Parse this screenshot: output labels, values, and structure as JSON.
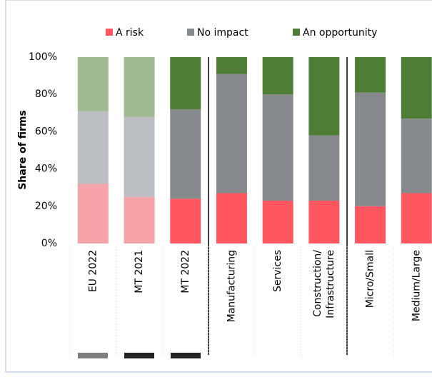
{
  "chart_data": {
    "type": "stacked_bar",
    "y_axis_label": "Share of firms",
    "categories": [
      "EU 2022",
      "MT 2021",
      "MT 2022",
      "Manufacturing",
      "Services",
      [
        "Construction/",
        "Infrastructure"
      ],
      "Micro/Small",
      "Medium/Large"
    ],
    "series": [
      {
        "name": "A risk",
        "color": "#ff5660",
        "colors": [
          "#f4a3a8",
          "#f4a3a8",
          "#ff5660",
          "#ff5660",
          "#ff5660",
          "#ff5660",
          "#ff5660",
          "#ff5660"
        ],
        "values": [
          32,
          25,
          24,
          27,
          23,
          23,
          20,
          27
        ]
      },
      {
        "name": "No impact",
        "color": "#878a8c",
        "colors": [
          "#bcbec1",
          "#bcbec1",
          "#878a8c",
          "#878a8c",
          "#878a8c",
          "#878a8c",
          "#878a8c",
          "#878a8c"
        ],
        "values": [
          39,
          43,
          48,
          64,
          57,
          35,
          61,
          40
        ]
      },
      {
        "name": "An opportunity",
        "color": "#4e7e35",
        "colors": [
          "#9fb993",
          "#9fb993",
          "#4e7e35",
          "#4e7e35",
          "#4e7e35",
          "#4e7e35",
          "#4e7e35",
          "#4e7e35"
        ],
        "values": [
          29,
          32,
          28,
          9,
          20,
          42,
          19,
          33
        ]
      }
    ],
    "ylim": [
      0,
      100
    ],
    "yticks": [
      {
        "value": 0,
        "label": "0%"
      },
      {
        "value": 20,
        "label": "20%"
      },
      {
        "value": 40,
        "label": "40%"
      },
      {
        "value": 60,
        "label": "60%"
      },
      {
        "value": 80,
        "label": "80%"
      },
      {
        "value": 100,
        "label": "100%"
      }
    ],
    "legend": "top"
  }
}
